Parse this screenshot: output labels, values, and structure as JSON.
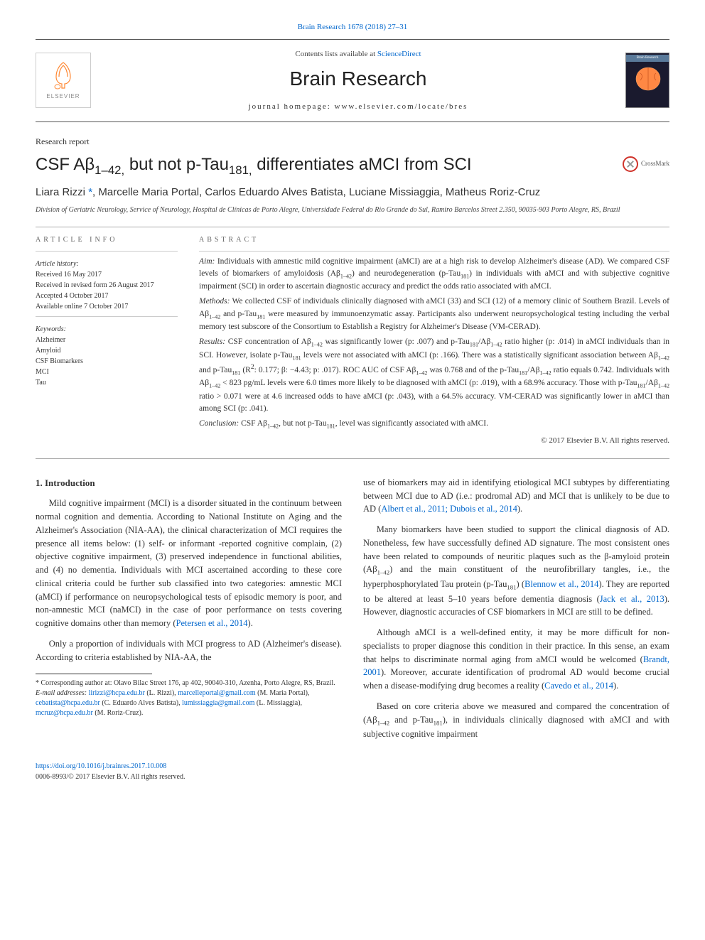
{
  "header": {
    "journal_ref": "Brain Research 1678 (2018) 27–31",
    "contents_prefix": "Contents lists available at ",
    "contents_link": "ScienceDirect",
    "journal_title": "Brain Research",
    "homepage_prefix": "journal homepage: ",
    "homepage_url": "www.elsevier.com/locate/bres",
    "elsevier_label": "ELSEVIER",
    "cover_label": "Brain Research"
  },
  "article": {
    "type": "Research report",
    "title_html": "CSF Aβ<sub>1–42,</sub> but not p-Tau<sub>181,</sub> differentiates aMCI from SCI",
    "crossmark": "CrossMark",
    "authors_html": "Liara Rizzi <a href=\"#\">*</a>, Marcelle Maria Portal, Carlos Eduardo Alves Batista, Luciane Missiaggia, Matheus Roriz-Cruz",
    "affiliation": "Division of Geriatric Neurology, Service of Neurology, Hospital de Clínicas de Porto Alegre, Universidade Federal do Rio Grande do Sul, Ramiro Barcelos Street 2.350, 90035-903 Porto Alegre, RS, Brazil"
  },
  "article_info": {
    "heading": "ARTICLE INFO",
    "history_label": "Article history:",
    "history": [
      "Received 16 May 2017",
      "Received in revised form 26 August 2017",
      "Accepted 4 October 2017",
      "Available online 7 October 2017"
    ],
    "keywords_label": "Keywords:",
    "keywords": [
      "Alzheimer",
      "Amyloid",
      "CSF Biomarkers",
      "MCI",
      "Tau"
    ]
  },
  "abstract": {
    "heading": "ABSTRACT",
    "aim_label": "Aim:",
    "aim_html": "Individuals with amnestic mild cognitive impairment (aMCI) are at a high risk to develop Alzheimer's disease (AD). We compared CSF levels of biomarkers of amyloidosis (Aβ<sub>1–42</sub>) and neurodegeneration (p-Tau<sub>181</sub>) in individuals with aMCI and with subjective cognitive impairment (SCI) in order to ascertain diagnostic accuracy and predict the odds ratio associated with aMCI.",
    "methods_label": "Methods:",
    "methods_html": "We collected CSF of individuals clinically diagnosed with aMCI (33) and SCI (12) of a memory clinic of Southern Brazil. Levels of Aβ<sub>1–42</sub> and p-Tau<sub>181</sub> were measured by immunoenzymatic assay. Participants also underwent neuropsychological testing including the verbal memory test subscore of the Consortium to Establish a Registry for Alzheimer's Disease (VM-CERAD).",
    "results_label": "Results:",
    "results_html": "CSF concentration of Aβ<sub>1–42</sub> was significantly lower (p: .007) and p-Tau<sub>181</sub>/Aβ<sub>1–42</sub> ratio higher (p: .014) in aMCI individuals than in SCI. However, isolate p-Tau<sub>181</sub> levels were not associated with aMCI (p: .166). There was a statistically significant association between Aβ<sub>1–42</sub> and p-Tau<sub>181</sub> (R<sup>2</sup>: 0.177; β: −4.43; p: .017). ROC AUC of CSF Aβ<sub>1–42</sub> was 0.768 and of the p-Tau<sub>181</sub>/Aβ<sub>1–42</sub> ratio equals 0.742. Individuals with Aβ<sub>1–42</sub> < 823 pg/mL levels were 6.0 times more likely to be diagnosed with aMCI (p: .019), with a 68.9% accuracy. Those with p-Tau<sub>181</sub>/Aβ<sub>1–42</sub> ratio > 0.071 were at 4.6 increased odds to have aMCI (p: .043), with a 64.5% accuracy. VM-CERAD was significantly lower in aMCI than among SCI (p: .041).",
    "conclusion_label": "Conclusion:",
    "conclusion_html": "CSF Aβ<sub>1–42</sub>, but not p-Tau<sub>181</sub>, level was significantly associated with aMCI.",
    "copyright": "© 2017 Elsevier B.V. All rights reserved."
  },
  "body": {
    "section_number": "1.",
    "section_title": "Introduction",
    "col1_paras": [
      "Mild cognitive impairment (MCI) is a disorder situated in the continuum between normal cognition and dementia. According to National Institute on Aging and the Alzheimer's Association (NIA-AA), the clinical characterization of MCI requires the presence all items below: (1) self- or informant -reported cognitive complain, (2) objective cognitive impairment, (3) preserved independence in functional abilities, and (4) no dementia. Individuals with MCI ascertained according to these core clinical criteria could be further sub classified into two categories: amnestic MCI (aMCI) if performance on neuropsychological tests of episodic memory is poor, and non-amnestic MCI (naMCI) in the case of poor performance on tests covering cognitive domains other than memory (<span class=\"cite\">Petersen et al., 2014</span>).",
      "Only a proportion of individuals with MCI progress to AD (Alzheimer's disease). According to criteria established by NIA-AA, the"
    ],
    "col2_paras": [
      "use of biomarkers may aid in identifying etiological MCI subtypes by differentiating between MCI due to AD (i.e.: prodromal AD) and MCI that is unlikely to be due to AD (<span class=\"cite\">Albert et al., 2011; Dubois et al., 2014</span>).",
      "Many biomarkers have been studied to support the clinical diagnosis of AD. Nonetheless, few have successfully defined AD signature. The most consistent ones have been related to compounds of neuritic plaques such as the β-amyloid protein (Aβ<sub>1–42</sub>) and the main constituent of the neurofibrillary tangles, i.e., the hyperphosphorylated Tau protein (p-Tau<sub>181</sub>) (<span class=\"cite\">Blennow et al., 2014</span>). They are reported to be altered at least 5–10 years before dementia diagnosis (<span class=\"cite\">Jack et al., 2013</span>). However, diagnostic accuracies of CSF biomarkers in MCI are still to be defined.",
      "Although aMCI is a well-defined entity, it may be more difficult for non-specialists to proper diagnose this condition in their practice. In this sense, an exam that helps to discriminate normal aging from aMCI would be welcomed (<span class=\"cite\">Brandt, 2001</span>). Moreover, accurate identification of prodromal AD would become crucial when a disease-modifying drug becomes a reality (<span class=\"cite\">Cavedo et al., 2014</span>).",
      "Based on core criteria above we measured and compared the concentration of (Aβ<sub>1–42</sub> and p-Tau<sub>181</sub>), in individuals clinically diagnosed with aMCI and with subjective cognitive impairment"
    ]
  },
  "footnotes": {
    "corr_html": "* Corresponding author at: Olavo Bilac Street 176, ap 402, 90040-310, Azenha, Porto Alegre, RS, Brazil.",
    "email_label": "E-mail addresses:",
    "emails_html": "<a href=\"#\">lirizzi@hcpa.edu.br</a> (L. Rizzi), <a href=\"#\">marcelleportal@gmail.com</a> (M. Maria Portal), <a href=\"#\">cebatista@hcpa.edu.br</a> (C. Eduardo Alves Batista), <a href=\"#\">lumissiaggia@gmail.com</a> (L. Missiaggia), <a href=\"#\">mcruz@hcpa.edu.br</a> (M. Roriz-Cruz)."
  },
  "footer": {
    "doi": "https://doi.org/10.1016/j.brainres.2017.10.008",
    "issn_line": "0006-8993/© 2017 Elsevier B.V. All rights reserved."
  },
  "colors": {
    "link": "#0066cc",
    "text": "#333333",
    "rule": "#555555",
    "elsevier_orange": "#ff6600"
  }
}
